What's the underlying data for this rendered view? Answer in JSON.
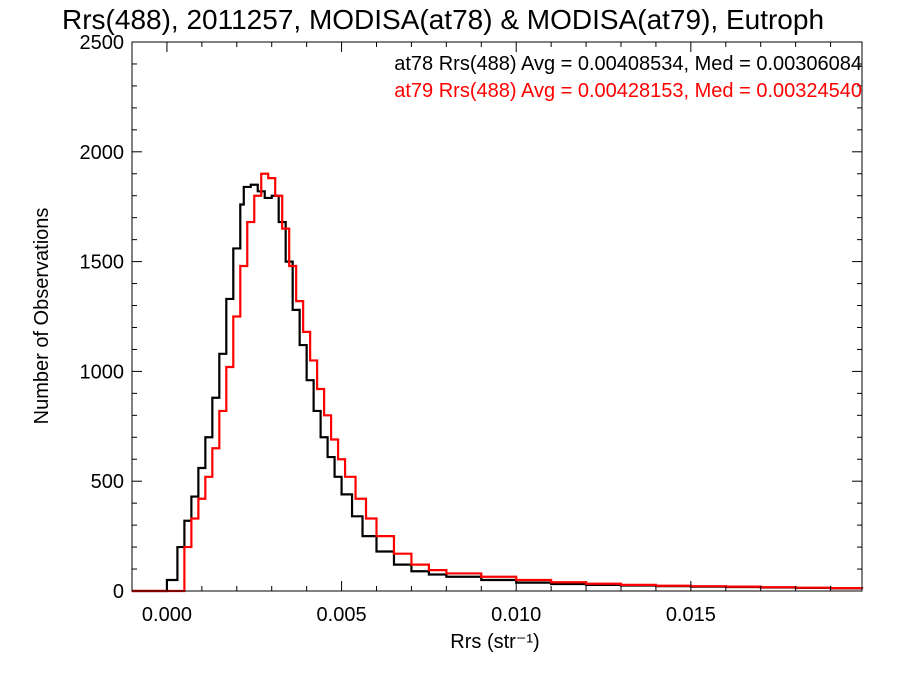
{
  "title": "Rrs(488), 2011257, MODISA(at78) & MODISA(at79), Eutroph",
  "colors": {
    "at78": "#000000",
    "at79": "#ff0000",
    "axis": "#000000"
  },
  "chart_data": {
    "type": "line",
    "title": "Rrs(488), 2011257, MODISA(at78) & MODISA(at79), Eutroph",
    "xlabel": "Rrs (str⁻¹)",
    "ylabel": "Number of Observations",
    "xlim": [
      -0.001,
      0.0199
    ],
    "ylim": [
      0,
      2500
    ],
    "x_ticks": [
      0.0,
      0.005,
      0.01,
      0.015
    ],
    "x_tick_labels": [
      "0.000",
      "0.005",
      "0.010",
      "0.015"
    ],
    "y_ticks": [
      0,
      500,
      1000,
      1500,
      2000,
      2500
    ],
    "y_tick_labels": [
      "0",
      "500",
      "1000",
      "1500",
      "2000",
      "2500"
    ],
    "grid": false,
    "legend_position": "top-right",
    "annotations": [
      {
        "text": "at78 Rrs(488) Avg = 0.00408534, Med = 0.00306084",
        "color": "#000000"
      },
      {
        "text": "at79 Rrs(488) Avg = 0.00428153, Med = 0.00324540",
        "color": "#ff0000"
      }
    ],
    "series": [
      {
        "name": "at78",
        "color": "#000000",
        "step": true,
        "x": [
          -0.001,
          -0.0001,
          0.0,
          0.0003,
          0.0005,
          0.0007,
          0.0009,
          0.0011,
          0.0013,
          0.0015,
          0.0017,
          0.0019,
          0.0021,
          0.0022,
          0.0024,
          0.0026,
          0.0028,
          0.003,
          0.0032,
          0.0034,
          0.0036,
          0.0038,
          0.004,
          0.0042,
          0.0044,
          0.0046,
          0.0048,
          0.005,
          0.0053,
          0.0056,
          0.006,
          0.0065,
          0.007,
          0.0075,
          0.008,
          0.009,
          0.01,
          0.011,
          0.012,
          0.013,
          0.014,
          0.015,
          0.016,
          0.017,
          0.018,
          0.019,
          0.0199
        ],
        "y": [
          0,
          0,
          50,
          200,
          320,
          430,
          560,
          700,
          880,
          1080,
          1330,
          1560,
          1760,
          1840,
          1850,
          1820,
          1790,
          1800,
          1680,
          1500,
          1280,
          1120,
          960,
          820,
          700,
          610,
          520,
          440,
          340,
          250,
          180,
          120,
          90,
          75,
          65,
          50,
          38,
          32,
          28,
          25,
          22,
          20,
          18,
          16,
          14,
          12,
          10
        ]
      },
      {
        "name": "at79",
        "color": "#ff0000",
        "step": true,
        "x": [
          -0.001,
          0.0,
          0.0003,
          0.0005,
          0.0007,
          0.0009,
          0.0011,
          0.0013,
          0.0015,
          0.0017,
          0.0019,
          0.0021,
          0.0023,
          0.0025,
          0.0027,
          0.0029,
          0.0031,
          0.0033,
          0.0035,
          0.0037,
          0.0039,
          0.0041,
          0.0043,
          0.0045,
          0.0047,
          0.0049,
          0.0051,
          0.0054,
          0.0057,
          0.006,
          0.0065,
          0.007,
          0.0075,
          0.008,
          0.009,
          0.01,
          0.011,
          0.012,
          0.013,
          0.014,
          0.015,
          0.016,
          0.017,
          0.018,
          0.019,
          0.0199
        ],
        "y": [
          0,
          0,
          0,
          200,
          330,
          420,
          520,
          650,
          820,
          1020,
          1250,
          1480,
          1680,
          1800,
          1900,
          1880,
          1800,
          1650,
          1480,
          1320,
          1180,
          1050,
          920,
          800,
          690,
          600,
          520,
          420,
          330,
          250,
          170,
          120,
          95,
          80,
          65,
          50,
          40,
          33,
          28,
          24,
          22,
          20,
          17,
          15,
          13,
          11
        ]
      }
    ]
  }
}
